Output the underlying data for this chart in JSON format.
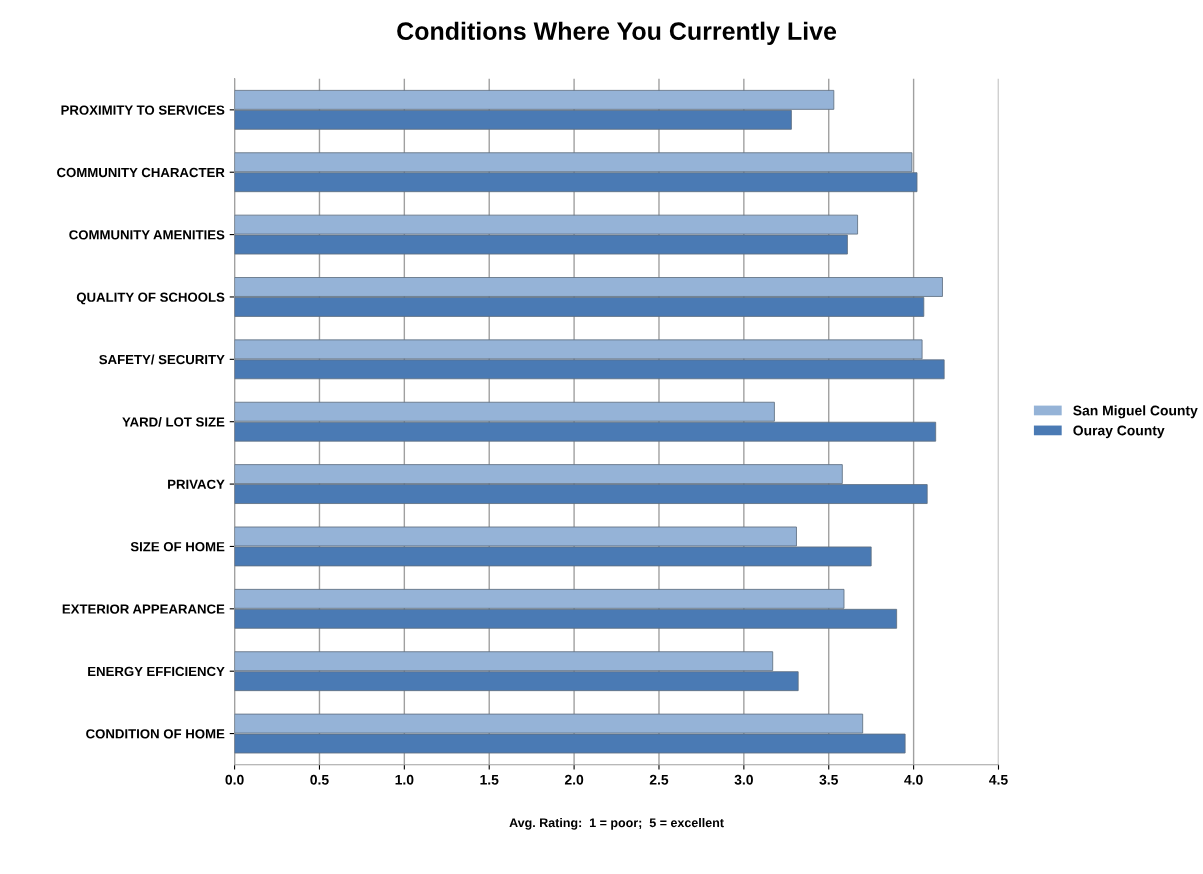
{
  "chart_data": {
    "type": "bar",
    "orientation": "horizontal",
    "title": "Conditions Where You Currently Live",
    "xlabel": "Avg. Rating:  1 = poor;  5 = excellent",
    "categories": [
      "PROXIMITY TO SERVICES",
      "COMMUNITY CHARACTER",
      "COMMUNITY AMENITIES",
      "QUALITY OF SCHOOLS",
      "SAFETY/ SECURITY",
      "YARD/ LOT SIZE",
      "PRIVACY",
      "SIZE OF HOME",
      "EXTERIOR APPEARANCE",
      "ENERGY EFFICIENCY",
      "CONDITION OF HOME"
    ],
    "series": [
      {
        "name": "San Miguel County",
        "color": "#95b3d7",
        "values": [
          3.53,
          3.99,
          3.67,
          4.17,
          4.05,
          3.18,
          3.58,
          3.31,
          3.59,
          3.17,
          3.7
        ]
      },
      {
        "name": "Ouray County",
        "color": "#4a7ab4",
        "values": [
          3.28,
          4.02,
          3.61,
          4.06,
          4.18,
          4.13,
          4.08,
          3.75,
          3.9,
          3.32,
          3.95
        ]
      }
    ],
    "xlim": [
      0,
      4.5
    ],
    "xticks": [
      {
        "value": 0,
        "label": "0.0"
      },
      {
        "value": 0.5,
        "label": "0.5"
      },
      {
        "value": 1,
        "label": "1.0"
      },
      {
        "value": 1.5,
        "label": "1.5"
      },
      {
        "value": 2,
        "label": "2.0"
      },
      {
        "value": 2.5,
        "label": "2.5"
      },
      {
        "value": 3,
        "label": "3.0"
      },
      {
        "value": 3.5,
        "label": "3.5"
      },
      {
        "value": 4,
        "label": "4.0"
      },
      {
        "value": 4.5,
        "label": "4.5"
      }
    ],
    "grid": "x",
    "legend": "right"
  }
}
